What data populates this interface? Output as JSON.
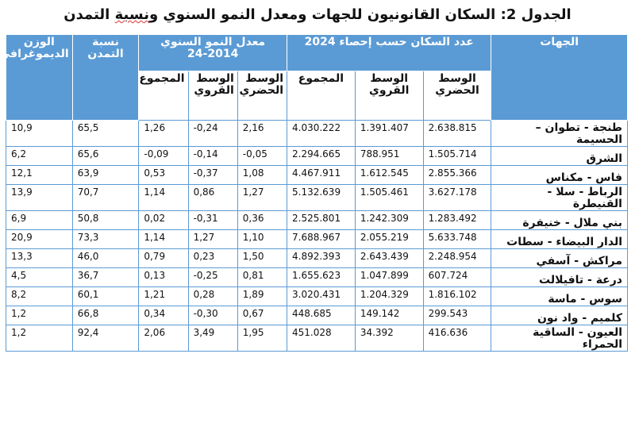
{
  "title_prefix": "الجدول 2: السكان القانونيون للجهات ومعدل النمو السنوي و",
  "title_underlined": "نسبة",
  "title_suffix": " التمدن",
  "headers": {
    "region": "الجهات",
    "population_group": "عدد السكان حسب إحصاء 2024",
    "growth_group": "معدل النمو السنوي 2014-24",
    "urbanization": "نسبة التمدن",
    "demographic_weight": "الوزن الديموغرافي",
    "urban": "الوسط الحضري",
    "rural": "الوسط القروي",
    "total": "المجموع"
  },
  "rows": [
    {
      "region": "طنجة - تطوان – الحسيمة",
      "pop_urban": "2.638.815",
      "pop_rural": "1.391.407",
      "pop_total": "4.030.222",
      "gr_urban": "2,16",
      "gr_rural": "-0,24",
      "gr_total": "1,26",
      "urban_pct": "65,5",
      "weight": "10,9"
    },
    {
      "region": "الشرق",
      "pop_urban": "1.505.714",
      "pop_rural": "788.951",
      "pop_total": "2.294.665",
      "gr_urban": "-0,05",
      "gr_rural": "-0,14",
      "gr_total": "-0,09",
      "urban_pct": "65,6",
      "weight": "6,2"
    },
    {
      "region": "فاس - مكناس",
      "pop_urban": "2.855.366",
      "pop_rural": "1.612.545",
      "pop_total": "4.467.911",
      "gr_urban": "1,08",
      "gr_rural": "-0,37",
      "gr_total": "0,53",
      "urban_pct": "63,9",
      "weight": "12,1"
    },
    {
      "region": "الرباط - سلا - القنيطرة",
      "pop_urban": "3.627.178",
      "pop_rural": "1.505.461",
      "pop_total": "5.132.639",
      "gr_urban": "1,27",
      "gr_rural": "0,86",
      "gr_total": "1,14",
      "urban_pct": "70,7",
      "weight": "13,9"
    },
    {
      "region": "بني ملال - خنيفرة",
      "pop_urban": "1.283.492",
      "pop_rural": "1.242.309",
      "pop_total": "2.525.801",
      "gr_urban": "0,36",
      "gr_rural": "-0,31",
      "gr_total": "0,02",
      "urban_pct": "50,8",
      "weight": "6,9"
    },
    {
      "region": "الدار البيضاء - سطات",
      "pop_urban": "5.633.748",
      "pop_rural": "2.055.219",
      "pop_total": "7.688.967",
      "gr_urban": "1,10",
      "gr_rural": "1,27",
      "gr_total": "1,14",
      "urban_pct": "73,3",
      "weight": "20,9"
    },
    {
      "region": "مراكش - آسفي",
      "pop_urban": "2.248.954",
      "pop_rural": "2.643.439",
      "pop_total": "4.892.393",
      "gr_urban": "1,50",
      "gr_rural": "0,23",
      "gr_total": "0,79",
      "urban_pct": "46,0",
      "weight": "13,3"
    },
    {
      "region": "درعة - تافيلالت",
      "pop_urban": "607.724",
      "pop_rural": "1.047.899",
      "pop_total": "1.655.623",
      "gr_urban": "0,81",
      "gr_rural": "-0,25",
      "gr_total": "0,13",
      "urban_pct": "36,7",
      "weight": "4,5"
    },
    {
      "region": "سوس - ماسة",
      "pop_urban": "1.816.102",
      "pop_rural": "1.204.329",
      "pop_total": "3.020.431",
      "gr_urban": "1,89",
      "gr_rural": "0,28",
      "gr_total": "1,21",
      "urban_pct": "60,1",
      "weight": "8,2"
    },
    {
      "region": "كلميم - واد نون",
      "pop_urban": "299.543",
      "pop_rural": "149.142",
      "pop_total": "448.685",
      "gr_urban": "0,67",
      "gr_rural": "-0,30",
      "gr_total": "0,34",
      "urban_pct": "66,8",
      "weight": "1,2"
    },
    {
      "region": "العيون - الساقية الحمراء",
      "pop_urban": "416.636",
      "pop_rural": "34.392",
      "pop_total": "451.028",
      "gr_urban": "1,95",
      "gr_rural": "3,49",
      "gr_total": "2,06",
      "urban_pct": "92,4",
      "weight": "1,2"
    }
  ]
}
